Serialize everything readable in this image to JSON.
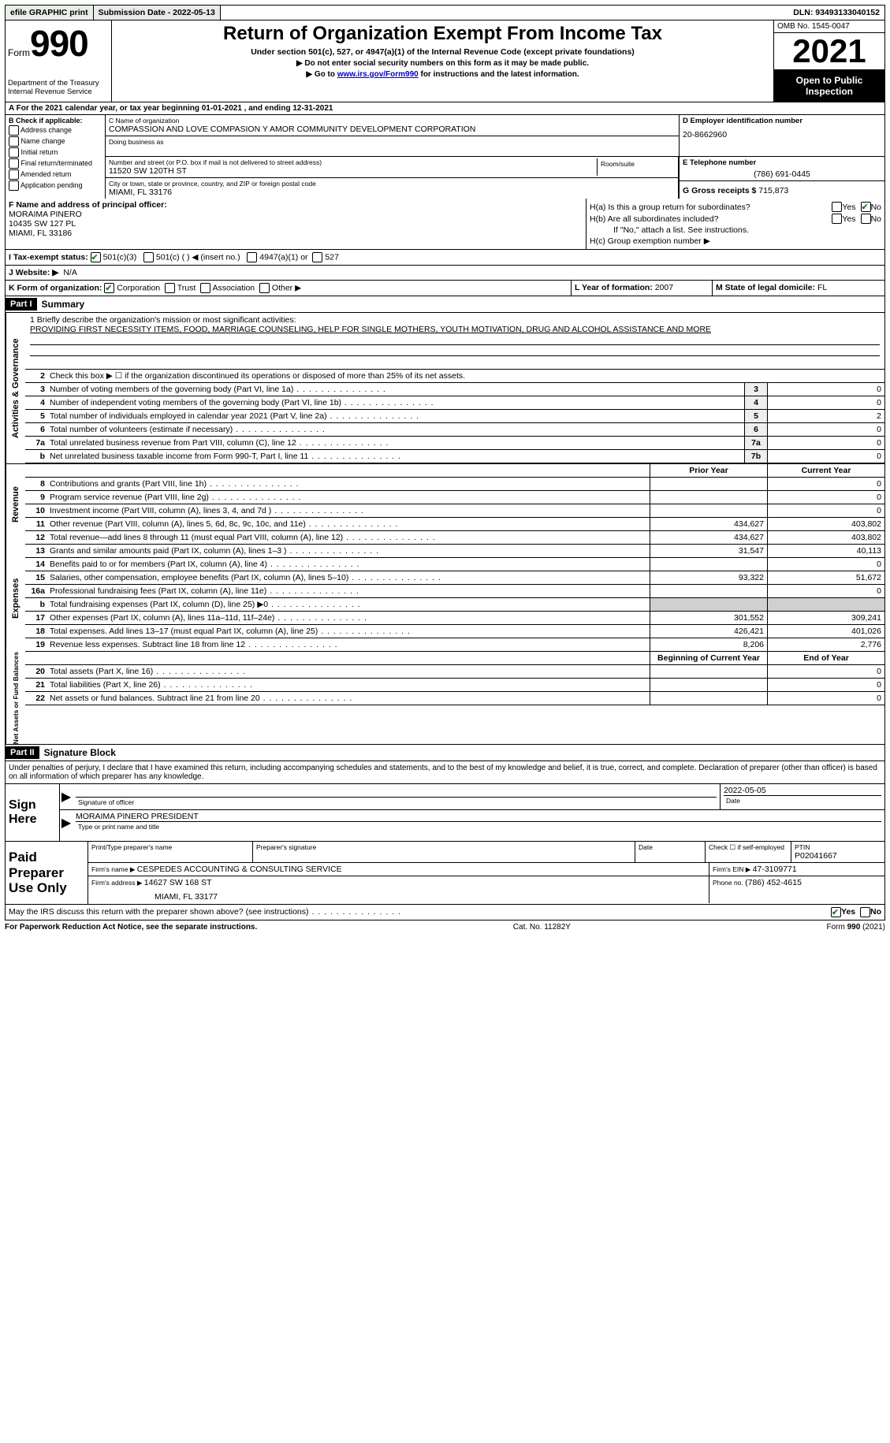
{
  "topbar": {
    "efile": "efile GRAPHIC print",
    "sub_label": "Submission Date - ",
    "sub_date": "2022-05-13",
    "dln_label": "DLN: ",
    "dln": "93493133040152"
  },
  "header": {
    "form_word": "Form",
    "form_no": "990",
    "dept": "Department of the Treasury",
    "irs": "Internal Revenue Service",
    "title": "Return of Organization Exempt From Income Tax",
    "sub1": "Under section 501(c), 527, or 4947(a)(1) of the Internal Revenue Code (except private foundations)",
    "sub2a": "▶ Do not enter social security numbers on this form as it may be made public.",
    "sub2b_pre": "▶ Go to ",
    "sub2b_link": "www.irs.gov/Form990",
    "sub2b_post": " for instructions and the latest information.",
    "omb": "OMB No. 1545-0047",
    "year": "2021",
    "otpi": "Open to Public Inspection"
  },
  "rowA": {
    "pre": "A For the 2021 calendar year, or tax year beginning ",
    "begin": "01-01-2021",
    "mid": "   , and ending ",
    "end": "12-31-2021"
  },
  "colB": {
    "hdr": "B Check if applicable:",
    "items": [
      "Address change",
      "Name change",
      "Initial return",
      "Final return/terminated",
      "Amended return",
      "Application pending"
    ]
  },
  "colC": {
    "name_lbl": "C Name of organization",
    "name": "COMPASSION AND LOVE COMPASION Y AMOR COMMUNITY DEVELOPMENT CORPORATION",
    "dba_lbl": "Doing business as",
    "addr_lbl": "Number and street (or P.O. box if mail is not delivered to street address)",
    "room_lbl": "Room/suite",
    "addr": "11520 SW 120TH ST",
    "city_lbl": "City or town, state or province, country, and ZIP or foreign postal code",
    "city": "MIAMI, FL  33176"
  },
  "colDE": {
    "d_lbl": "D Employer identification number",
    "ein": "20-8662960",
    "e_lbl": "E Telephone number",
    "phone": "(786) 691-0445",
    "g_lbl": "G Gross receipts $ ",
    "g_val": "715,873"
  },
  "F": {
    "lbl": "F Name and address of principal officer:",
    "name": "MORAIMA PINERO",
    "addr1": "10435 SW 127 PL",
    "addr2": "MIAMI, FL  33186"
  },
  "H": {
    "a": "H(a)  Is this a group return for subordinates?",
    "b": "H(b)  Are all subordinates included?",
    "b_note": "If \"No,\" attach a list. See instructions.",
    "c": "H(c)  Group exemption number ▶",
    "yes": "Yes",
    "no": "No"
  },
  "I": {
    "lbl": "I   Tax-exempt status:",
    "o1": "501(c)(3)",
    "o2": "501(c) (  ) ◀ (insert no.)",
    "o3": "4947(a)(1) or",
    "o4": "527"
  },
  "J": {
    "lbl": "J   Website: ▶",
    "val": "  N/A"
  },
  "K": {
    "lbl": "K Form of organization:",
    "opts": [
      "Corporation",
      "Trust",
      "Association",
      "Other ▶"
    ]
  },
  "L": {
    "lbl": "L Year of formation: ",
    "val": "2007"
  },
  "M": {
    "lbl": "M State of legal domicile: ",
    "val": "FL"
  },
  "part1": {
    "hdr": "Part I",
    "title": "Summary"
  },
  "mission": {
    "l1": "1   Briefly describe the organization's mission or most significant activities:",
    "text": "PROVIDING FIRST NECESSITY ITEMS, FOOD, MARRIAGE COUNSELING, HELP FOR SINGLE MOTHERS, YOUTH MOTIVATION, DRUG AND ALCOHOL ASSISTANCE AND MORE"
  },
  "vtabs": {
    "ag": "Activities & Governance",
    "rev": "Revenue",
    "exp": "Expenses",
    "na": "Net Assets or Fund Balances"
  },
  "ag_rows": [
    {
      "n": "2",
      "t": "Check this box ▶ ☐  if the organization discontinued its operations or disposed of more than 25% of its net assets."
    },
    {
      "n": "3",
      "t": "Number of voting members of the governing body (Part VI, line 1a)",
      "box": "3",
      "v": "0"
    },
    {
      "n": "4",
      "t": "Number of independent voting members of the governing body (Part VI, line 1b)",
      "box": "4",
      "v": "0"
    },
    {
      "n": "5",
      "t": "Total number of individuals employed in calendar year 2021 (Part V, line 2a)",
      "box": "5",
      "v": "2"
    },
    {
      "n": "6",
      "t": "Total number of volunteers (estimate if necessary)",
      "box": "6",
      "v": "0"
    },
    {
      "n": "7a",
      "t": "Total unrelated business revenue from Part VIII, column (C), line 12",
      "box": "7a",
      "v": "0"
    },
    {
      "n": "b",
      "t": "Net unrelated business taxable income from Form 990-T, Part I, line 11",
      "box": "7b",
      "v": "0"
    }
  ],
  "py_cy_hdr": {
    "py": "Prior Year",
    "cy": "Current Year"
  },
  "rev_rows": [
    {
      "n": "8",
      "t": "Contributions and grants (Part VIII, line 1h)",
      "py": "",
      "cy": "0"
    },
    {
      "n": "9",
      "t": "Program service revenue (Part VIII, line 2g)",
      "py": "",
      "cy": "0"
    },
    {
      "n": "10",
      "t": "Investment income (Part VIII, column (A), lines 3, 4, and 7d )",
      "py": "",
      "cy": "0"
    },
    {
      "n": "11",
      "t": "Other revenue (Part VIII, column (A), lines 5, 6d, 8c, 9c, 10c, and 11e)",
      "py": "434,627",
      "cy": "403,802"
    },
    {
      "n": "12",
      "t": "Total revenue—add lines 8 through 11 (must equal Part VIII, column (A), line 12)",
      "py": "434,627",
      "cy": "403,802"
    }
  ],
  "exp_rows": [
    {
      "n": "13",
      "t": "Grants and similar amounts paid (Part IX, column (A), lines 1–3 )",
      "py": "31,547",
      "cy": "40,113"
    },
    {
      "n": "14",
      "t": "Benefits paid to or for members (Part IX, column (A), line 4)",
      "py": "",
      "cy": "0"
    },
    {
      "n": "15",
      "t": "Salaries, other compensation, employee benefits (Part IX, column (A), lines 5–10)",
      "py": "93,322",
      "cy": "51,672"
    },
    {
      "n": "16a",
      "t": "Professional fundraising fees (Part IX, column (A), line 11e)",
      "py": "",
      "cy": "0"
    },
    {
      "n": "b",
      "t": "Total fundraising expenses (Part IX, column (D), line 25) ▶0",
      "py": "shade",
      "cy": "shade"
    },
    {
      "n": "17",
      "t": "Other expenses (Part IX, column (A), lines 11a–11d, 11f–24e)",
      "py": "301,552",
      "cy": "309,241"
    },
    {
      "n": "18",
      "t": "Total expenses. Add lines 13–17 (must equal Part IX, column (A), line 25)",
      "py": "426,421",
      "cy": "401,026"
    },
    {
      "n": "19",
      "t": "Revenue less expenses. Subtract line 18 from line 12",
      "py": "8,206",
      "cy": "2,776"
    }
  ],
  "na_hdr": {
    "b": "Beginning of Current Year",
    "e": "End of Year"
  },
  "na_rows": [
    {
      "n": "20",
      "t": "Total assets (Part X, line 16)",
      "py": "",
      "cy": "0"
    },
    {
      "n": "21",
      "t": "Total liabilities (Part X, line 26)",
      "py": "",
      "cy": "0"
    },
    {
      "n": "22",
      "t": "Net assets or fund balances. Subtract line 21 from line 20",
      "py": "",
      "cy": "0"
    }
  ],
  "part2": {
    "hdr": "Part II",
    "title": "Signature Block"
  },
  "sig_decl": "Under penalties of perjury, I declare that I have examined this return, including accompanying schedules and statements, and to the best of my knowledge and belief, it is true, correct, and complete. Declaration of preparer (other than officer) is based on all information of which preparer has any knowledge.",
  "sign": {
    "here": "Sign Here",
    "sig_of": "Signature of officer",
    "date_lbl": "Date",
    "date": "2022-05-05",
    "name": "MORAIMA PINERO  PRESIDENT",
    "name_lbl": "Type or print name and title"
  },
  "paid": {
    "lbl": "Paid Preparer Use Only",
    "h1": "Print/Type preparer's name",
    "h2": "Preparer's signature",
    "h3": "Date",
    "h4a": "Check ☐ if self-employed",
    "h5_lbl": "PTIN",
    "h5": "P02041667",
    "firm_lbl": "Firm's name    ▶ ",
    "firm": "CESPEDES ACCOUNTING & CONSULTING SERVICE",
    "ein_lbl": "Firm's EIN ▶ ",
    "ein": "47-3109771",
    "addr_lbl": "Firm's address ▶ ",
    "addr1": "14627 SW 168 ST",
    "addr2": "MIAMI, FL  33177",
    "phone_lbl": "Phone no. ",
    "phone": "(786) 452-4615"
  },
  "irs_q": "May the IRS discuss this return with the preparer shown above? (see instructions)",
  "footer": {
    "left": "For Paperwork Reduction Act Notice, see the separate instructions.",
    "mid": "Cat. No. 11282Y",
    "right": "Form 990 (2021)"
  }
}
